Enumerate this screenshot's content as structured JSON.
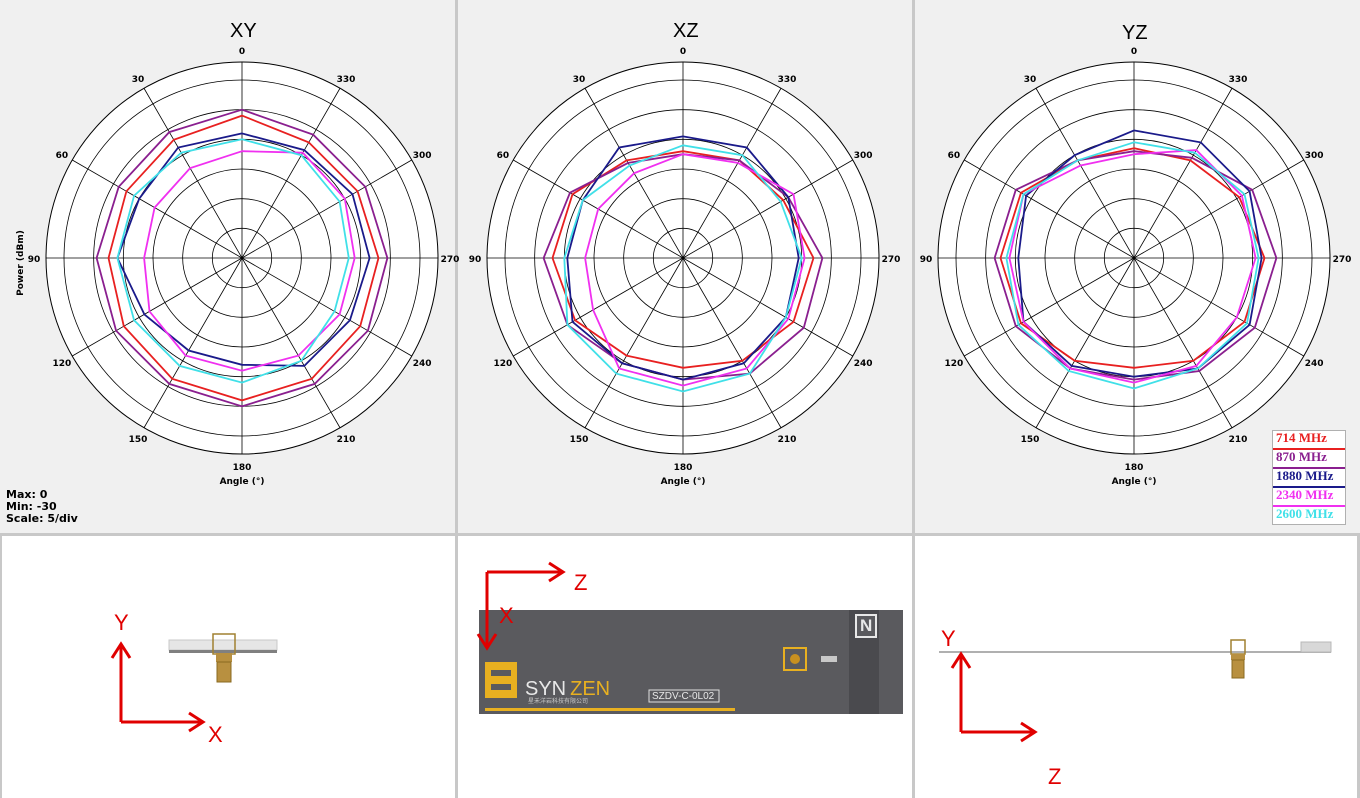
{
  "titles": {
    "xy": "XY",
    "xz": "XZ",
    "yz": "YZ"
  },
  "common": {
    "ylabel": "Power (dBm)",
    "xlabel": "Angle (°)"
  },
  "info": {
    "max": "Max: 0",
    "min": "Min: -30",
    "scale": "Scale: 5/div"
  },
  "legend": [
    {
      "label": "714 MHz",
      "color": "#e82020"
    },
    {
      "label": "870 MHz",
      "color": "#8a1f8f"
    },
    {
      "label": "1880 MHz",
      "color": "#1a1a8a"
    },
    {
      "label": "2340 MHz",
      "color": "#f030f0"
    },
    {
      "label": "2600 MHz",
      "color": "#40e0e8"
    }
  ],
  "chart_data": [
    {
      "type": "polar",
      "title": "XY",
      "rlim": [
        -30,
        0
      ],
      "r_step": 5,
      "angles": [
        0,
        30,
        60,
        90,
        120,
        150,
        180,
        210,
        240,
        270,
        300,
        330
      ],
      "series": [
        {
          "name": "714 MHz",
          "color": "#e82020",
          "values": [
            -6,
            -7,
            -7.5,
            -7.5,
            -7,
            -6.5,
            -6,
            -6.5,
            -7,
            -7,
            -7.5,
            -7.5
          ]
        },
        {
          "name": "870 MHz",
          "color": "#8a1f8f",
          "values": [
            -5,
            -5.5,
            -6,
            -5.5,
            -5.5,
            -5.5,
            -5,
            -5.5,
            -5.5,
            -5.5,
            -6,
            -6
          ]
        },
        {
          "name": "1880 MHz",
          "color": "#1a1a8a",
          "values": [
            -9,
            -8.5,
            -10,
            -9,
            -11,
            -12,
            -12,
            -9,
            -9,
            -8.5,
            -8.5,
            -9
          ]
        },
        {
          "name": "2340 MHz",
          "color": "#f030f0",
          "values": [
            -12,
            -12.5,
            -13,
            -13.5,
            -12,
            -11,
            -11,
            -11,
            -11,
            -11,
            -10,
            -9.5
          ]
        },
        {
          "name": "2600 MHz",
          "color": "#40e0e8",
          "values": [
            -10,
            -9.5,
            -9,
            -9,
            -9,
            -9,
            -9,
            -10,
            -12,
            -12,
            -11,
            -10
          ]
        }
      ]
    },
    {
      "type": "polar",
      "title": "XZ",
      "rlim": [
        -30,
        0
      ],
      "r_step": 5,
      "angles": [
        0,
        30,
        60,
        90,
        120,
        150,
        180,
        210,
        240,
        270,
        300,
        330
      ],
      "series": [
        {
          "name": "714 MHz",
          "color": "#e82020",
          "values": [
            -12,
            -11,
            -8.5,
            -8,
            -9,
            -11,
            -11.5,
            -10,
            -8.5,
            -8,
            -10.5,
            -11
          ]
        },
        {
          "name": "870 MHz",
          "color": "#8a1f8f",
          "values": [
            -12.5,
            -11.5,
            -8,
            -6.5,
            -7.5,
            -9.5,
            -9.5,
            -7.5,
            -6.5,
            -6.5,
            -9.5,
            -11
          ]
        },
        {
          "name": "1880 MHz",
          "color": "#1a1a8a",
          "values": [
            -9.5,
            -8.5,
            -10.5,
            -10.5,
            -8.5,
            -9.5,
            -9.5,
            -9.5,
            -10,
            -10.5,
            -9.5,
            -8.5
          ]
        },
        {
          "name": "2340 MHz",
          "color": "#f030f0",
          "values": [
            -12.5,
            -13.5,
            -13.5,
            -13.5,
            -12.5,
            -8.5,
            -8.5,
            -8.5,
            -9.5,
            -9.5,
            -8.5,
            -11.5
          ]
        },
        {
          "name": "2600 MHz",
          "color": "#40e0e8",
          "values": [
            -11,
            -12,
            -10.5,
            -10,
            -7.5,
            -7.5,
            -7.5,
            -7.5,
            -10,
            -10,
            -11,
            -10
          ]
        }
      ]
    },
    {
      "type": "polar",
      "title": "YZ",
      "rlim": [
        -30,
        0
      ],
      "r_step": 5,
      "angles": [
        0,
        30,
        60,
        90,
        120,
        150,
        180,
        210,
        240,
        270,
        300,
        330
      ],
      "series": [
        {
          "name": "714 MHz",
          "color": "#e82020",
          "values": [
            -11.5,
            -11,
            -8,
            -7.5,
            -8,
            -10,
            -11.5,
            -10,
            -8.5,
            -8,
            -9.5,
            -11
          ]
        },
        {
          "name": "870 MHz",
          "color": "#8a1f8f",
          "values": [
            -12,
            -11,
            -7,
            -6.5,
            -7,
            -8.5,
            -9.5,
            -8,
            -6.5,
            -6,
            -7,
            -10.5
          ]
        },
        {
          "name": "1880 MHz",
          "color": "#1a1a8a",
          "values": [
            -8.5,
            -10,
            -9,
            -10.5,
            -8.5,
            -9,
            -10,
            -8.5,
            -7.5,
            -8.5,
            -7.5,
            -7.5
          ]
        },
        {
          "name": "2340 MHz",
          "color": "#f030f0",
          "values": [
            -12.5,
            -12,
            -8.5,
            -9,
            -8.5,
            -8.5,
            -9,
            -9,
            -10,
            -9.5,
            -9,
            -9
          ]
        },
        {
          "name": "2600 MHz",
          "color": "#40e0e8",
          "values": [
            -10.5,
            -11,
            -8.5,
            -8.5,
            -7.5,
            -8,
            -8,
            -8.5,
            -8,
            -9,
            -8.5,
            -9.5
          ]
        }
      ]
    }
  ],
  "orientation": {
    "xy": {
      "vertical": "Y",
      "horizontal": "X"
    },
    "xz": {
      "vertical": "X",
      "horizontal": "Z"
    },
    "yz": {
      "vertical": "Y",
      "horizontal": "Z"
    }
  },
  "product": {
    "brand_syn": "SYN",
    "brand_zen": "ZEN",
    "brand_cn": "星禾洋岩科技有限公司",
    "model": "SZDV-C-0L02",
    "badge": "N"
  },
  "colors": {
    "axis_arrow": "#e00000",
    "pcb": "#5a5a5e",
    "brand_yellow": "#e8b020"
  }
}
